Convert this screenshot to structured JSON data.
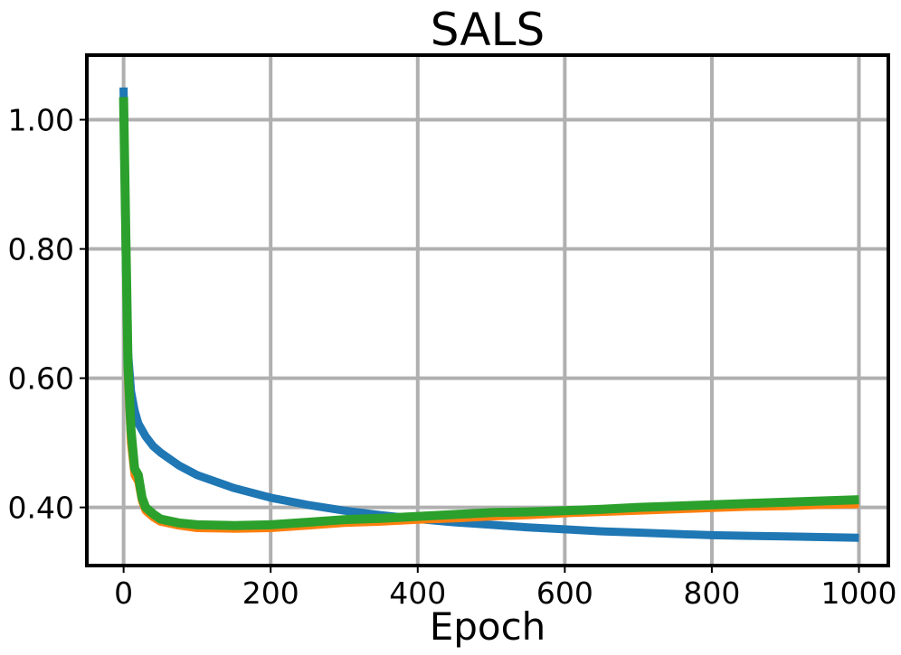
{
  "chart_data": {
    "type": "line",
    "title": "SALS",
    "xlabel": "Epoch",
    "ylabel": "",
    "xlim": [
      -50,
      1040
    ],
    "ylim": [
      0.31,
      1.1
    ],
    "xticks": [
      0,
      200,
      400,
      600,
      800,
      1000
    ],
    "xtick_labels": [
      "0",
      "200",
      "400",
      "600",
      "800",
      "1000"
    ],
    "yticks": [
      0.4,
      0.6,
      0.8,
      1.0
    ],
    "ytick_labels": [
      "0.40",
      "0.60",
      "0.80",
      "1.00"
    ],
    "grid": true,
    "legend": "none",
    "series": [
      {
        "color": "#1f77b4",
        "x": [
          0,
          3,
          6,
          10,
          15,
          20,
          30,
          40,
          50,
          75,
          100,
          150,
          200,
          250,
          300,
          350,
          400,
          450,
          500,
          550,
          600,
          650,
          700,
          750,
          800,
          850,
          900,
          950,
          1000
        ],
        "y": [
          1.05,
          0.78,
          0.64,
          0.58,
          0.55,
          0.53,
          0.51,
          0.495,
          0.485,
          0.465,
          0.45,
          0.43,
          0.415,
          0.404,
          0.395,
          0.388,
          0.382,
          0.377,
          0.373,
          0.369,
          0.366,
          0.363,
          0.361,
          0.359,
          0.357,
          0.356,
          0.355,
          0.354,
          0.353
        ]
      },
      {
        "color": "#ff7f0e",
        "x": [
          0,
          3,
          6,
          10,
          15,
          20,
          25,
          30,
          40,
          50,
          75,
          100,
          150,
          200,
          250,
          300,
          350,
          400,
          450,
          500,
          550,
          600,
          650,
          700,
          750,
          800,
          850,
          900,
          950,
          1000
        ],
        "y": [
          1.03,
          0.8,
          0.6,
          0.5,
          0.45,
          0.44,
          0.41,
          0.395,
          0.385,
          0.378,
          0.372,
          0.368,
          0.367,
          0.368,
          0.372,
          0.376,
          0.378,
          0.381,
          0.383,
          0.386,
          0.388,
          0.391,
          0.393,
          0.395,
          0.397,
          0.399,
          0.401,
          0.402,
          0.404,
          0.405
        ]
      },
      {
        "color": "#2ca02c",
        "x": [
          0,
          3,
          6,
          10,
          15,
          20,
          25,
          30,
          40,
          50,
          75,
          100,
          150,
          200,
          250,
          300,
          350,
          400,
          450,
          500,
          550,
          600,
          650,
          700,
          750,
          800,
          850,
          900,
          950,
          1000
        ],
        "y": [
          1.035,
          0.82,
          0.62,
          0.52,
          0.46,
          0.45,
          0.415,
          0.4,
          0.39,
          0.382,
          0.376,
          0.373,
          0.372,
          0.373,
          0.377,
          0.381,
          0.383,
          0.386,
          0.389,
          0.392,
          0.393,
          0.395,
          0.397,
          0.4,
          0.402,
          0.404,
          0.406,
          0.408,
          0.41,
          0.412
        ]
      }
    ]
  }
}
